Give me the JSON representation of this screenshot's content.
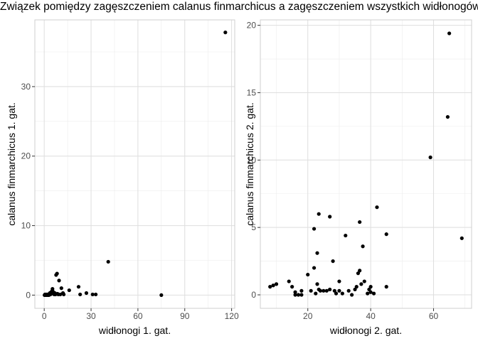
{
  "figure": {
    "title": "Związek pomiędzy zagęszczeniem calanus finmarchicus a zagęszczeniem wszystkich widłonogów"
  },
  "chart_data": [
    {
      "type": "scatter",
      "xlabel": "widłonogi 1. gat.",
      "ylabel": "calanus finmarchicus 1. gat.",
      "xlim": [
        -6,
        122
      ],
      "ylim": [
        -1.9,
        39.6
      ],
      "xticks": [
        0,
        30,
        60,
        90,
        120
      ],
      "xtick_labels": [
        "0",
        "30",
        "60",
        "90",
        "120"
      ],
      "yticks": [
        0,
        10,
        20,
        30
      ],
      "ytick_labels": [
        "0",
        "10",
        "20",
        "30"
      ],
      "grid": true,
      "points": [
        [
          0.2,
          0
        ],
        [
          0.5,
          0.1
        ],
        [
          0.8,
          0
        ],
        [
          1.0,
          0.1
        ],
        [
          1.3,
          0
        ],
        [
          1.6,
          0.1
        ],
        [
          1.9,
          0
        ],
        [
          2.2,
          0.1
        ],
        [
          2.5,
          0
        ],
        [
          2.8,
          0.1
        ],
        [
          3.0,
          0
        ],
        [
          3.3,
          0.2
        ],
        [
          3.6,
          0.3
        ],
        [
          4.0,
          0.1
        ],
        [
          4.3,
          0.4
        ],
        [
          4.6,
          0.2
        ],
        [
          5.0,
          0.6
        ],
        [
          5.3,
          0.9
        ],
        [
          5.6,
          0.5
        ],
        [
          6.0,
          0.2
        ],
        [
          6.4,
          0.1
        ],
        [
          6.8,
          0.3
        ],
        [
          7.2,
          0.1
        ],
        [
          7.6,
          2.9
        ],
        [
          8.2,
          3.1
        ],
        [
          8.5,
          0.2
        ],
        [
          9.0,
          0.1
        ],
        [
          9.5,
          2.1
        ],
        [
          10.3,
          0.1
        ],
        [
          11.0,
          1.0
        ],
        [
          12.0,
          0.3
        ],
        [
          12.5,
          0.1
        ],
        [
          16.0,
          0.7
        ],
        [
          22.0,
          1.2
        ],
        [
          23.0,
          0.1
        ],
        [
          27.0,
          0.3
        ],
        [
          31.0,
          0.1
        ],
        [
          33.0,
          0.1
        ],
        [
          41.0,
          4.8
        ],
        [
          75.0,
          0
        ],
        [
          116.0,
          37.8
        ]
      ]
    },
    {
      "type": "scatter",
      "xlabel": "widłonogi 2. gat.",
      "ylabel": "calanus finmarchicus 2. gat.",
      "xlim": [
        4.9,
        72.1
      ],
      "ylim": [
        -1.0,
        20.4
      ],
      "xticks": [
        20,
        40,
        60
      ],
      "xtick_labels": [
        "20",
        "40",
        "60"
      ],
      "yticks": [
        0,
        5,
        10,
        15,
        20
      ],
      "ytick_labels": [
        "0",
        "5",
        "10",
        "15",
        "20"
      ],
      "grid": true,
      "points": [
        [
          8,
          0.6
        ],
        [
          9,
          0.7
        ],
        [
          10,
          0.8
        ],
        [
          14,
          1.0
        ],
        [
          15,
          0.6
        ],
        [
          16,
          0.2
        ],
        [
          16,
          0
        ],
        [
          17,
          0
        ],
        [
          18,
          0
        ],
        [
          18,
          0.3
        ],
        [
          20,
          1.5
        ],
        [
          21,
          0.3
        ],
        [
          22,
          2.0
        ],
        [
          22.5,
          0.1
        ],
        [
          22,
          4.9
        ],
        [
          23,
          0.8
        ],
        [
          23,
          3.1
        ],
        [
          23.5,
          0.4
        ],
        [
          23.5,
          6.0
        ],
        [
          24,
          0.3
        ],
        [
          25,
          0.3
        ],
        [
          26,
          0.3
        ],
        [
          27,
          0.4
        ],
        [
          27,
          5.8
        ],
        [
          28,
          2.5
        ],
        [
          28.5,
          0.3
        ],
        [
          29,
          0.1
        ],
        [
          30,
          1.0
        ],
        [
          30,
          0.3
        ],
        [
          31,
          0.1
        ],
        [
          32,
          4.4
        ],
        [
          33,
          0.3
        ],
        [
          34,
          0
        ],
        [
          35,
          0.4
        ],
        [
          35.5,
          0.6
        ],
        [
          36,
          1.6
        ],
        [
          36.5,
          1.8
        ],
        [
          36.5,
          5.4
        ],
        [
          37,
          0.8
        ],
        [
          37.5,
          3.6
        ],
        [
          38,
          1.0
        ],
        [
          39,
          0.1
        ],
        [
          39.5,
          0.4
        ],
        [
          40,
          0.6
        ],
        [
          40,
          0.2
        ],
        [
          41,
          0.1
        ],
        [
          42,
          6.5
        ],
        [
          45,
          4.5
        ],
        [
          45,
          0.6
        ],
        [
          59,
          10.2
        ],
        [
          64.5,
          13.2
        ],
        [
          65,
          19.4
        ],
        [
          69,
          4.2
        ]
      ]
    }
  ]
}
